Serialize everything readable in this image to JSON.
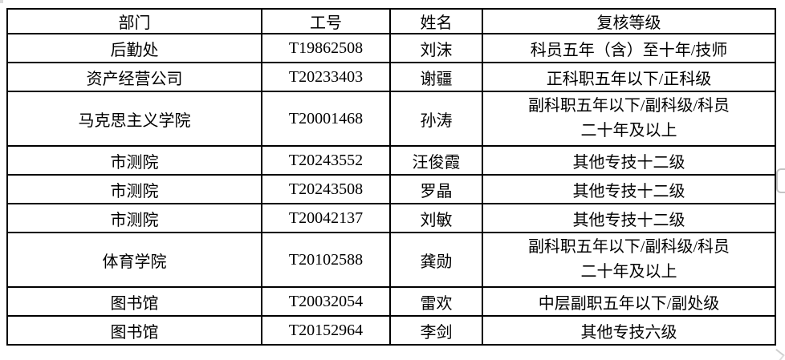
{
  "table": {
    "headers": [
      "部门",
      "工号",
      "姓名",
      "复核等级"
    ],
    "rows": [
      {
        "department": "后勤处",
        "employee_id": "T19862508",
        "name": "刘沫",
        "review_level": "科员五年（含）至十年/技师"
      },
      {
        "department": "资产经营公司",
        "employee_id": "T20233403",
        "name": "谢疆",
        "review_level": "正科职五年以下/正科级"
      },
      {
        "department": "马克思主义学院",
        "employee_id": "T20001468",
        "name": "孙涛",
        "review_level": "副科职五年以下/副科级/科员\n二十年及以上"
      },
      {
        "department": "市测院",
        "employee_id": "T20243552",
        "name": "汪俊霞",
        "review_level": "其他专技十二级"
      },
      {
        "department": "市测院",
        "employee_id": "T20243508",
        "name": "罗晶",
        "review_level": "其他专技十二级"
      },
      {
        "department": "市测院",
        "employee_id": "T20042137",
        "name": "刘敏",
        "review_level": "其他专技十二级"
      },
      {
        "department": "体育学院",
        "employee_id": "T20102588",
        "name": "龚勋",
        "review_level": "副科职五年以下/副科级/科员\n二十年及以上"
      },
      {
        "department": "图书馆",
        "employee_id": "T20032054",
        "name": "雷欢",
        "review_level": "中层副职五年以下/副处级"
      },
      {
        "department": "图书馆",
        "employee_id": "T20152964",
        "name": "李剑",
        "review_level": "其他专技六级"
      }
    ]
  },
  "colors": {
    "table_border": "#000000",
    "background": "#ffffff",
    "artifact_gray": "#c4c4c4"
  }
}
